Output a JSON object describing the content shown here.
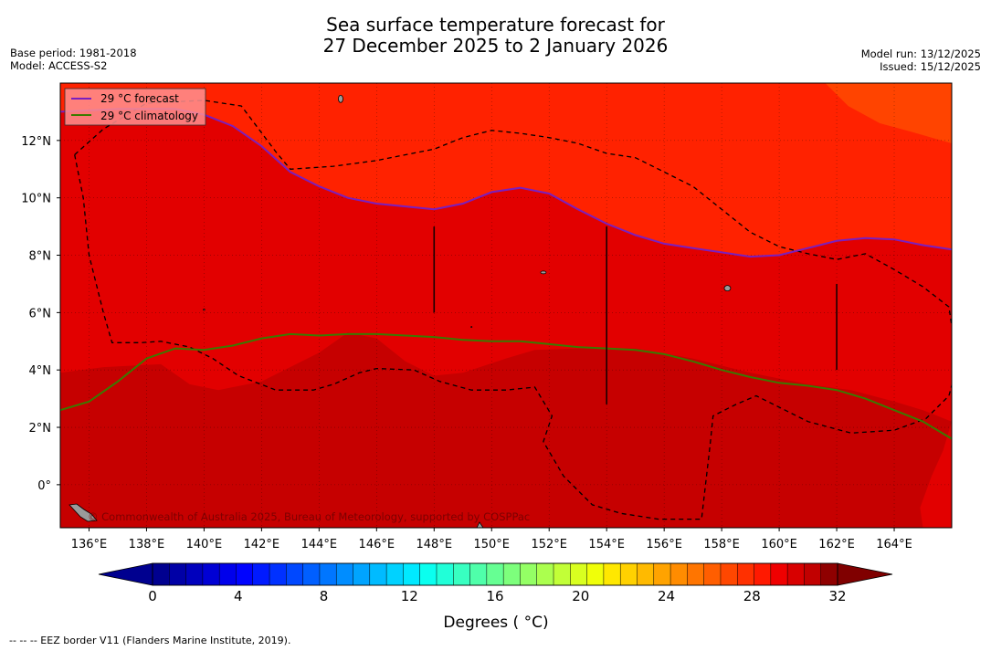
{
  "title": {
    "line1": "Sea surface temperature forecast for",
    "line2": "27 December 2025 to 2 January 2026"
  },
  "meta_left": {
    "base_period": "Base period: 1981-2018",
    "model": "Model: ACCESS-S2"
  },
  "meta_right": {
    "model_run": "Model run: 13/12/2025",
    "issued": "Issued: 15/12/2025"
  },
  "legend": {
    "forecast": "29 °C  forecast",
    "climatology": "29 °C  climatology"
  },
  "copyright": "© Commonwealth of Australia 2025, Bureau of Meteorology, supported by COSPPac",
  "footnote": "--  --  -- EEZ border V11 (Flanders Marine Institute, 2019).",
  "colorbar": {
    "label": "Degrees ( °C)",
    "ticks": [
      "0",
      "4",
      "8",
      "12",
      "16",
      "20",
      "24",
      "28",
      "32"
    ]
  },
  "colors": {
    "sst_27_28": "#ff2200",
    "sst_28_29": "#f20a00",
    "sst_29_30": "#e20000",
    "sst_30_31": "#c60000",
    "sst_26_27": "#ff4400",
    "forecast_line": "#7a1fbf",
    "climatology_line": "#3a7a00"
  },
  "chart_data": {
    "type": "map",
    "variable": "Sea surface temperature",
    "units": "°C",
    "contour_level": 29,
    "lon_range": [
      135,
      166
    ],
    "lat_range": [
      -1.5,
      14
    ],
    "x_ticks": [
      "136°E",
      "138°E",
      "140°E",
      "142°E",
      "144°E",
      "146°E",
      "148°E",
      "150°E",
      "152°E",
      "154°E",
      "156°E",
      "158°E",
      "160°E",
      "162°E",
      "164°E"
    ],
    "y_ticks": [
      "12°N",
      "10°N",
      "8°N",
      "6°N",
      "4°N",
      "2°N",
      "0°"
    ],
    "x_tick_values": [
      136,
      138,
      140,
      142,
      144,
      146,
      148,
      150,
      152,
      154,
      156,
      158,
      160,
      162,
      164
    ],
    "y_tick_values": [
      12,
      10,
      8,
      6,
      4,
      2,
      0
    ],
    "forecast_29C_contour": [
      [
        135,
        13.0
      ],
      [
        137,
        13.1
      ],
      [
        139,
        13.1
      ],
      [
        140,
        12.9
      ],
      [
        141,
        12.5
      ],
      [
        142,
        11.8
      ],
      [
        143,
        10.9
      ],
      [
        144,
        10.4
      ],
      [
        145,
        10.0
      ],
      [
        146,
        9.8
      ],
      [
        147,
        9.7
      ],
      [
        148,
        9.6
      ],
      [
        149,
        9.8
      ],
      [
        150,
        10.2
      ],
      [
        151,
        10.35
      ],
      [
        152,
        10.15
      ],
      [
        153,
        9.6
      ],
      [
        154,
        9.1
      ],
      [
        155,
        8.7
      ],
      [
        156,
        8.4
      ],
      [
        157,
        8.25
      ],
      [
        158,
        8.1
      ],
      [
        159,
        7.95
      ],
      [
        160,
        8.0
      ],
      [
        161,
        8.25
      ],
      [
        162,
        8.5
      ],
      [
        163,
        8.6
      ],
      [
        164,
        8.55
      ],
      [
        165,
        8.35
      ],
      [
        166,
        8.2
      ]
    ],
    "climatology_29C_contour": [
      [
        135,
        2.6
      ],
      [
        136,
        2.9
      ],
      [
        137,
        3.6
      ],
      [
        138,
        4.4
      ],
      [
        139,
        4.75
      ],
      [
        140,
        4.7
      ],
      [
        141,
        4.85
      ],
      [
        142,
        5.1
      ],
      [
        143,
        5.25
      ],
      [
        144,
        5.2
      ],
      [
        145,
        5.25
      ],
      [
        146,
        5.25
      ],
      [
        147,
        5.2
      ],
      [
        148,
        5.15
      ],
      [
        149,
        5.05
      ],
      [
        150,
        5.0
      ],
      [
        151,
        5.0
      ],
      [
        152,
        4.9
      ],
      [
        153,
        4.8
      ],
      [
        154,
        4.75
      ],
      [
        155,
        4.7
      ],
      [
        156,
        4.55
      ],
      [
        157,
        4.3
      ],
      [
        158,
        4.0
      ],
      [
        159,
        3.75
      ],
      [
        160,
        3.55
      ],
      [
        161,
        3.45
      ],
      [
        162,
        3.3
      ],
      [
        163,
        3.0
      ],
      [
        164,
        2.6
      ],
      [
        165,
        2.2
      ],
      [
        166,
        1.6
      ]
    ],
    "region_30_31_boundary": [
      [
        135,
        3.9
      ],
      [
        136.5,
        4.1
      ],
      [
        138.5,
        4.2
      ],
      [
        139.5,
        3.5
      ],
      [
        140.5,
        3.3
      ],
      [
        142,
        3.6
      ],
      [
        144,
        4.6
      ],
      [
        145,
        5.3
      ],
      [
        146,
        5.1
      ],
      [
        147,
        4.3
      ],
      [
        148,
        3.8
      ],
      [
        149,
        3.9
      ],
      [
        150.5,
        4.4
      ],
      [
        151.5,
        4.7
      ],
      [
        153,
        4.75
      ],
      [
        155,
        4.75
      ],
      [
        157,
        4.4
      ],
      [
        159,
        3.9
      ],
      [
        161,
        3.5
      ],
      [
        162.5,
        3.3
      ],
      [
        164,
        2.9
      ],
      [
        165,
        2.6
      ],
      [
        166,
        2.2
      ]
    ],
    "eez_paths": [
      [
        [
          135.5,
          11.5
        ],
        [
          136.5,
          12.4
        ],
        [
          138,
          13.3
        ],
        [
          140,
          13.4
        ],
        [
          141.3,
          13.2
        ],
        [
          142.5,
          11.6
        ],
        [
          143,
          11.0
        ],
        [
          144.5,
          11.1
        ],
        [
          146,
          11.3
        ],
        [
          148,
          11.7
        ],
        [
          149,
          12.1
        ],
        [
          150,
          12.35
        ],
        [
          151,
          12.25
        ],
        [
          152,
          12.1
        ],
        [
          153,
          11.9
        ],
        [
          154,
          11.55
        ],
        [
          155,
          11.4
        ],
        [
          156,
          10.9
        ],
        [
          157,
          10.4
        ],
        [
          158,
          9.6
        ],
        [
          159,
          8.8
        ],
        [
          160,
          8.3
        ],
        [
          161,
          8.05
        ],
        [
          162,
          7.85
        ],
        [
          163,
          8.05
        ],
        [
          164,
          7.5
        ],
        [
          165,
          6.9
        ],
        [
          165.9,
          6.2
        ],
        [
          166.2,
          4.2
        ],
        [
          165.9,
          3.1
        ],
        [
          165.1,
          2.3
        ],
        [
          164,
          1.9
        ],
        [
          162.5,
          1.8
        ],
        [
          161,
          2.2
        ],
        [
          160,
          2.7
        ],
        [
          159.2,
          3.1
        ],
        [
          158.5,
          2.8
        ],
        [
          157.7,
          2.4
        ],
        [
          157.6,
          1.4
        ],
        [
          157.3,
          -1.2
        ],
        [
          155.8,
          -1.2
        ],
        [
          154.5,
          -1.0
        ],
        [
          153.5,
          -0.7
        ],
        [
          152.5,
          0.3
        ],
        [
          151.8,
          1.5
        ],
        [
          152.1,
          2.4
        ],
        [
          151.5,
          3.4
        ],
        [
          150.5,
          3.3
        ],
        [
          149.3,
          3.3
        ],
        [
          148.2,
          3.6
        ],
        [
          147.3,
          4.0
        ],
        [
          146,
          4.05
        ],
        [
          145.4,
          3.9
        ],
        [
          144.5,
          3.5
        ],
        [
          143.8,
          3.3
        ],
        [
          142.5,
          3.3
        ],
        [
          141.2,
          3.8
        ],
        [
          140.3,
          4.4
        ],
        [
          139.5,
          4.8
        ],
        [
          138.5,
          5.0
        ],
        [
          137.8,
          4.95
        ],
        [
          136.8,
          4.95
        ],
        [
          136.5,
          6.0
        ],
        [
          136,
          8.0
        ],
        [
          135.8,
          10.0
        ],
        [
          135.5,
          11.5
        ]
      ]
    ],
    "colorbar": {
      "min": 0,
      "max": 32,
      "step": 1,
      "colors": [
        "#00008f",
        "#0000a6",
        "#0000bd",
        "#0000d4",
        "#0000eb",
        "#0003ff",
        "#001aff",
        "#0031ff",
        "#0048ff",
        "#005fff",
        "#0076ff",
        "#008dff",
        "#00a4ff",
        "#00bbff",
        "#00d2ff",
        "#00e9ff",
        "#0affef",
        "#21ffd8",
        "#38ffc1",
        "#4fffaa",
        "#66ff93",
        "#7dff7c",
        "#94ff65",
        "#abff4e",
        "#c2ff37",
        "#d9ff20",
        "#f0ff09",
        "#ffe800",
        "#ffd100",
        "#ffba00",
        "#ffa300",
        "#ff8c00",
        "#ff7500",
        "#ff5e00",
        "#ff4700",
        "#ff3000",
        "#ff1900",
        "#ef0000",
        "#d80000",
        "#c10000",
        "#8f0000"
      ],
      "under_color": "#00008f",
      "over_color": "#800000"
    }
  }
}
